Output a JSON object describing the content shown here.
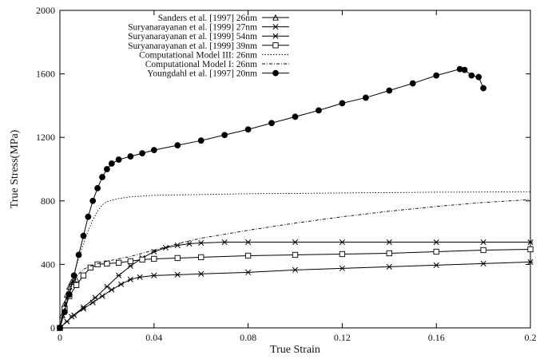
{
  "chart_data": {
    "type": "line",
    "title": "",
    "xlabel": "True Strain",
    "ylabel": "True Stress(MPa)",
    "xlim": [
      0,
      0.2
    ],
    "ylim": [
      0,
      2000
    ],
    "x_ticks": [
      0,
      0.04,
      0.08,
      0.12,
      0.16,
      0.2
    ],
    "x_tick_labels": [
      "0",
      "0.04",
      "0.08",
      "0.12",
      "0.16",
      "0.2"
    ],
    "y_ticks": [
      0,
      400,
      800,
      1200,
      1600,
      2000
    ],
    "y_tick_labels": [
      "0",
      "400",
      "800",
      "1200",
      "1600",
      "2000"
    ],
    "grid": false,
    "legend_position": "top-left",
    "series": [
      {
        "name": "Sanders et al. [1997] 26nm",
        "marker": "triangle",
        "line": "solid",
        "points": [
          [
            0,
            0
          ],
          [
            0.001,
            80
          ],
          [
            0.002,
            150
          ],
          [
            0.003,
            210
          ],
          [
            0.004,
            260
          ],
          [
            0.005,
            290
          ],
          [
            0.006,
            300
          ],
          [
            0.007,
            305
          ]
        ]
      },
      {
        "name": "Suryanarayanan et al. [1999] 27nm",
        "marker": "x",
        "line": "solid",
        "points": [
          [
            0,
            0
          ],
          [
            0.003,
            40
          ],
          [
            0.006,
            80
          ],
          [
            0.01,
            120
          ],
          [
            0.014,
            160
          ],
          [
            0.018,
            200
          ],
          [
            0.022,
            240
          ],
          [
            0.026,
            275
          ],
          [
            0.03,
            305
          ],
          [
            0.034,
            320
          ],
          [
            0.04,
            330
          ],
          [
            0.05,
            335
          ],
          [
            0.06,
            340
          ],
          [
            0.08,
            350
          ],
          [
            0.1,
            365
          ],
          [
            0.12,
            375
          ],
          [
            0.14,
            385
          ],
          [
            0.16,
            395
          ],
          [
            0.18,
            405
          ],
          [
            0.2,
            415
          ]
        ]
      },
      {
        "name": "Suryanarayanan et al. [1999] 54nm",
        "marker": "x",
        "line": "solid",
        "points": [
          [
            0,
            0
          ],
          [
            0.005,
            70
          ],
          [
            0.01,
            130
          ],
          [
            0.015,
            190
          ],
          [
            0.02,
            260
          ],
          [
            0.025,
            330
          ],
          [
            0.03,
            390
          ],
          [
            0.035,
            440
          ],
          [
            0.04,
            480
          ],
          [
            0.045,
            505
          ],
          [
            0.05,
            520
          ],
          [
            0.055,
            530
          ],
          [
            0.06,
            535
          ],
          [
            0.07,
            540
          ],
          [
            0.08,
            540
          ],
          [
            0.1,
            540
          ],
          [
            0.12,
            540
          ],
          [
            0.14,
            540
          ],
          [
            0.16,
            540
          ],
          [
            0.18,
            540
          ],
          [
            0.2,
            540
          ]
        ]
      },
      {
        "name": "Suryanarayanan et al. [1999] 39nm",
        "marker": "square",
        "line": "solid",
        "points": [
          [
            0,
            0
          ],
          [
            0.002,
            120
          ],
          [
            0.004,
            200
          ],
          [
            0.007,
            270
          ],
          [
            0.01,
            330
          ],
          [
            0.013,
            380
          ],
          [
            0.016,
            400
          ],
          [
            0.02,
            405
          ],
          [
            0.025,
            410
          ],
          [
            0.03,
            420
          ],
          [
            0.035,
            430
          ],
          [
            0.04,
            435
          ],
          [
            0.05,
            440
          ],
          [
            0.06,
            445
          ],
          [
            0.08,
            455
          ],
          [
            0.1,
            460
          ],
          [
            0.12,
            465
          ],
          [
            0.14,
            470
          ],
          [
            0.16,
            480
          ],
          [
            0.18,
            490
          ],
          [
            0.2,
            495
          ]
        ]
      },
      {
        "name": "Computational Model III: 26nm",
        "marker": "none",
        "line": "dotted",
        "points": [
          [
            0,
            0
          ],
          [
            0.002,
            120
          ],
          [
            0.004,
            230
          ],
          [
            0.006,
            340
          ],
          [
            0.008,
            440
          ],
          [
            0.01,
            530
          ],
          [
            0.012,
            610
          ],
          [
            0.014,
            680
          ],
          [
            0.016,
            735
          ],
          [
            0.018,
            775
          ],
          [
            0.02,
            795
          ],
          [
            0.025,
            815
          ],
          [
            0.03,
            825
          ],
          [
            0.04,
            835
          ],
          [
            0.06,
            840
          ],
          [
            0.08,
            845
          ],
          [
            0.1,
            847
          ],
          [
            0.12,
            850
          ],
          [
            0.14,
            852
          ],
          [
            0.16,
            855
          ],
          [
            0.18,
            856
          ],
          [
            0.2,
            858
          ]
        ]
      },
      {
        "name": "Computational Model I: 26nm",
        "marker": "none",
        "line": "dashed",
        "points": [
          [
            0,
            0
          ],
          [
            0.002,
            130
          ],
          [
            0.004,
            230
          ],
          [
            0.006,
            300
          ],
          [
            0.008,
            340
          ],
          [
            0.01,
            370
          ],
          [
            0.015,
            400
          ],
          [
            0.02,
            420
          ],
          [
            0.03,
            450
          ],
          [
            0.04,
            490
          ],
          [
            0.05,
            530
          ],
          [
            0.06,
            565
          ],
          [
            0.08,
            615
          ],
          [
            0.1,
            660
          ],
          [
            0.12,
            700
          ],
          [
            0.14,
            735
          ],
          [
            0.16,
            765
          ],
          [
            0.18,
            790
          ],
          [
            0.2,
            808
          ]
        ]
      },
      {
        "name": "Youngdahl et al. [1997] 20nm",
        "marker": "filled-circle",
        "line": "solid",
        "points": [
          [
            0,
            0
          ],
          [
            0.002,
            100
          ],
          [
            0.004,
            210
          ],
          [
            0.006,
            330
          ],
          [
            0.008,
            460
          ],
          [
            0.01,
            580
          ],
          [
            0.012,
            700
          ],
          [
            0.014,
            800
          ],
          [
            0.016,
            880
          ],
          [
            0.018,
            950
          ],
          [
            0.02,
            1000
          ],
          [
            0.022,
            1035
          ],
          [
            0.025,
            1060
          ],
          [
            0.03,
            1080
          ],
          [
            0.035,
            1100
          ],
          [
            0.04,
            1120
          ],
          [
            0.05,
            1150
          ],
          [
            0.06,
            1180
          ],
          [
            0.07,
            1215
          ],
          [
            0.08,
            1250
          ],
          [
            0.09,
            1290
          ],
          [
            0.1,
            1330
          ],
          [
            0.11,
            1370
          ],
          [
            0.12,
            1415
          ],
          [
            0.13,
            1450
          ],
          [
            0.14,
            1495
          ],
          [
            0.15,
            1540
          ],
          [
            0.16,
            1590
          ],
          [
            0.17,
            1630
          ],
          [
            0.172,
            1625
          ],
          [
            0.175,
            1590
          ],
          [
            0.178,
            1580
          ],
          [
            0.18,
            1510
          ]
        ]
      }
    ]
  }
}
